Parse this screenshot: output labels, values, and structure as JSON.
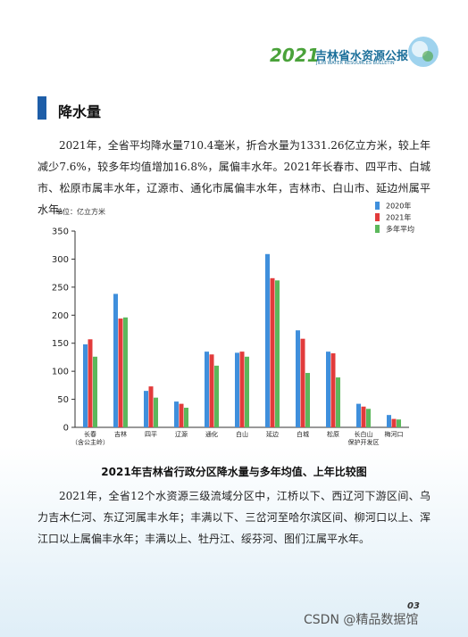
{
  "header": {
    "year": "2021",
    "title": "吉林省水资源公报",
    "subtitle": "JILIN WATER RESOURCES BULLETIN"
  },
  "section_title": "降水量",
  "paragraphs": [
    "2021年，全省平均降水量710.4毫米，折合水量为1331.26亿立方米，较上年减少7.6%，较多年均值增加16.8%，属偏丰水年。2021年长春市、四平市、白城市、松原市属丰水年，辽源市、通化市属偏丰水年，吉林市、白山市、延边州属平水年。",
    "2021年，全省12个水资源三级流域分区中，江桥以下、西辽河下游区间、乌力吉木仁河、东辽河属丰水年；丰满以下、三岔河至哈尔滨区间、柳河口以上、浑江口以上属偏丰水年；丰满以上、牡丹江、绥芬河、图们江属平水年。"
  ],
  "chart_data": {
    "type": "bar",
    "title": "2021年吉林省行政分区降水量与多年均值、上年比较图",
    "unit": "单位：亿立方米",
    "categories": [
      "长春\n（含公主岭）",
      "吉林",
      "四平",
      "辽源",
      "通化",
      "白山",
      "延边",
      "白城",
      "松原",
      "长白山\n保护开发区",
      "梅河口"
    ],
    "series": [
      {
        "name": "2020年",
        "color": "#3f8fdc",
        "values": [
          148,
          238,
          65,
          46,
          135,
          133,
          309,
          173,
          135,
          42,
          22
        ]
      },
      {
        "name": "2021年",
        "color": "#e23b3b",
        "values": [
          157,
          194,
          73,
          42,
          130,
          135,
          266,
          158,
          132,
          37,
          15
        ]
      },
      {
        "name": "多年平均",
        "color": "#5cb85c",
        "values": [
          126,
          196,
          53,
          35,
          110,
          126,
          262,
          97,
          89,
          33,
          14
        ]
      }
    ],
    "ylim": [
      0,
      350
    ],
    "yticks": [
      0,
      50,
      100,
      150,
      200,
      250,
      300,
      350
    ],
    "legend": "top-right"
  },
  "page_number": "03",
  "watermark": "CSDN @精品数据馆"
}
